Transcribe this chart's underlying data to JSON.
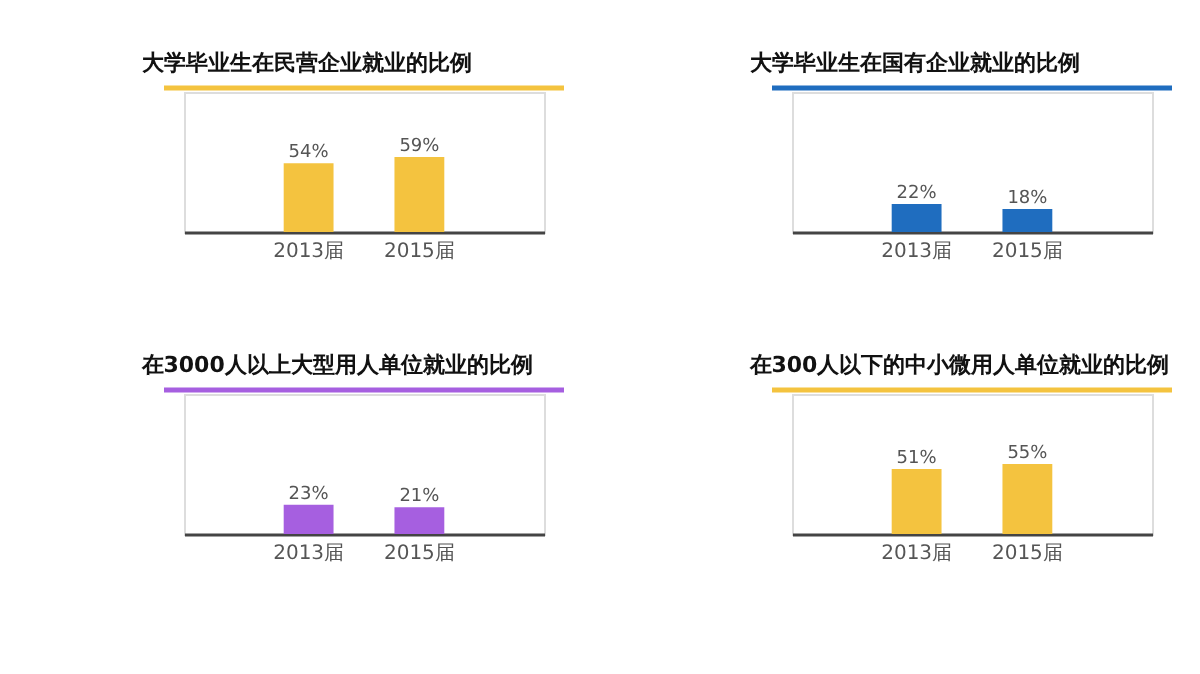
{
  "chart_data": [
    {
      "type": "bar",
      "title": "大学毕业生在民营企业就业的比例",
      "categories": [
        "2013届",
        "2015届"
      ],
      "values": [
        54,
        59
      ],
      "color": "#f4c33f",
      "ylim": [
        0,
        110
      ],
      "data_labels": true,
      "value_labels": [
        "54%",
        "59%"
      ],
      "tick_labels": "x",
      "grid": false,
      "legend": false
    },
    {
      "type": "bar",
      "title": "大学毕业生在国有企业就业的比例",
      "categories": [
        "2013届",
        "2015届"
      ],
      "values": [
        22,
        18
      ],
      "color": "#1f6dbf",
      "ylim": [
        0,
        110
      ],
      "data_labels": true,
      "value_labels": [
        "22%",
        "18%"
      ],
      "tick_labels": "x",
      "grid": false,
      "legend": false
    },
    {
      "type": "bar",
      "title": "在3000人以上大型用人单位就业的比例",
      "categories": [
        "2013届",
        "2015届"
      ],
      "values": [
        23,
        21
      ],
      "color": "#a65fe0",
      "ylim": [
        0,
        110
      ],
      "data_labels": true,
      "value_labels": [
        "23%",
        "21%"
      ],
      "tick_labels": "x",
      "grid": false,
      "legend": false
    },
    {
      "type": "bar",
      "title": "在300人以下的中小微用人单位就业的比例",
      "categories": [
        "2013届",
        "2015届"
      ],
      "values": [
        51,
        55
      ],
      "color": "#f4c33f",
      "ylim": [
        0,
        110
      ],
      "data_labels": true,
      "value_labels": [
        "51%",
        "55%"
      ],
      "tick_labels": "x",
      "grid": false,
      "legend": false
    }
  ]
}
